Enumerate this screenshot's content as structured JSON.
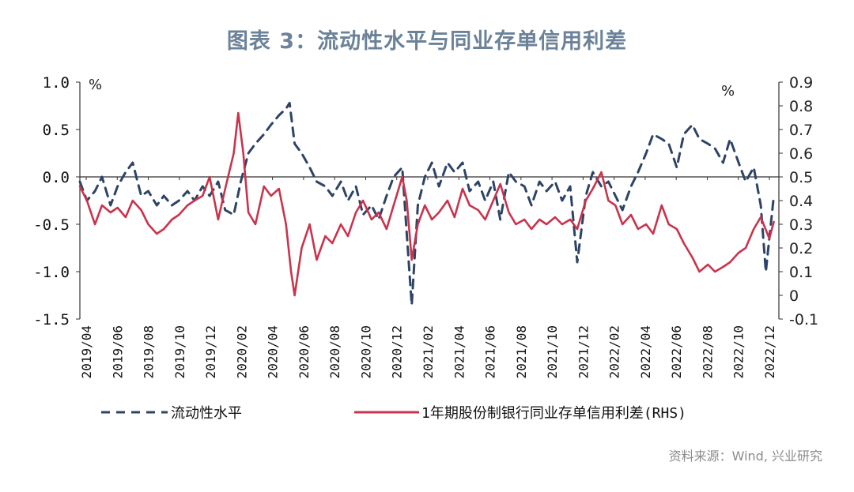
{
  "title": "图表 3：流动性水平与同业存单信用利差",
  "source": "资料来源：Wind, 兴业研究",
  "chart_data": {
    "type": "line",
    "x_tick_labels": [
      "2019/04",
      "2019/06",
      "2019/08",
      "2019/10",
      "2019/12",
      "2020/02",
      "2020/04",
      "2020/06",
      "2020/08",
      "2020/10",
      "2020/12",
      "2021/02",
      "2021/04",
      "2021/06",
      "2021/08",
      "2021/10",
      "2021/12",
      "2022/02",
      "2022/04",
      "2022/06",
      "2022/08",
      "2022/10",
      "2022/12"
    ],
    "left_axis": {
      "unit": "%",
      "ylim": [
        -1.5,
        1.0
      ],
      "ticks": [
        "1.0",
        "0.5",
        "0.0",
        "-0.5",
        "-1.0",
        "-1.5"
      ]
    },
    "right_axis": {
      "unit": "%",
      "ylim": [
        -0.1,
        0.9
      ],
      "ticks": [
        "0.9",
        "0.8",
        "0.7",
        "0.6",
        "0.5",
        "0.4",
        "0.3",
        "0.2",
        "0.1",
        "0",
        "-0.1"
      ]
    },
    "legend_placement": "bottom",
    "series": [
      {
        "name": "流动性水平",
        "axis": "left",
        "style": "dashed",
        "color": "#2e4466",
        "points": [
          [
            "2019-04-01",
            -0.05
          ],
          [
            "2019-04-15",
            -0.25
          ],
          [
            "2019-05-01",
            -0.15
          ],
          [
            "2019-05-15",
            0.0
          ],
          [
            "2019-06-01",
            -0.3
          ],
          [
            "2019-06-15",
            -0.1
          ],
          [
            "2019-07-01",
            0.05
          ],
          [
            "2019-07-15",
            0.15
          ],
          [
            "2019-08-01",
            -0.2
          ],
          [
            "2019-08-15",
            -0.15
          ],
          [
            "2019-09-01",
            -0.3
          ],
          [
            "2019-09-15",
            -0.2
          ],
          [
            "2019-10-01",
            -0.3
          ],
          [
            "2019-10-15",
            -0.25
          ],
          [
            "2019-11-01",
            -0.15
          ],
          [
            "2019-11-15",
            -0.25
          ],
          [
            "2019-12-01",
            -0.1
          ],
          [
            "2019-12-15",
            -0.2
          ],
          [
            "2020-01-01",
            -0.05
          ],
          [
            "2020-01-15",
            -0.35
          ],
          [
            "2020-02-01",
            -0.4
          ],
          [
            "2020-02-15",
            -0.05
          ],
          [
            "2020-03-01",
            0.25
          ],
          [
            "2020-03-15",
            0.35
          ],
          [
            "2020-04-01",
            0.45
          ],
          [
            "2020-04-15",
            0.55
          ],
          [
            "2020-05-01",
            0.65
          ],
          [
            "2020-05-15",
            0.72
          ],
          [
            "2020-05-22",
            0.78
          ],
          [
            "2020-06-01",
            0.35
          ],
          [
            "2020-06-15",
            0.25
          ],
          [
            "2020-07-01",
            0.1
          ],
          [
            "2020-07-15",
            -0.05
          ],
          [
            "2020-08-01",
            -0.1
          ],
          [
            "2020-08-15",
            -0.2
          ],
          [
            "2020-09-01",
            -0.05
          ],
          [
            "2020-09-15",
            -0.25
          ],
          [
            "2020-10-01",
            -0.1
          ],
          [
            "2020-10-15",
            -0.4
          ],
          [
            "2020-11-01",
            -0.3
          ],
          [
            "2020-11-15",
            -0.45
          ],
          [
            "2020-12-01",
            -0.2
          ],
          [
            "2020-12-15",
            0.0
          ],
          [
            "2021-01-01",
            0.1
          ],
          [
            "2021-01-10",
            -0.6
          ],
          [
            "2021-01-20",
            -1.35
          ],
          [
            "2021-02-01",
            -0.3
          ],
          [
            "2021-02-15",
            0.0
          ],
          [
            "2021-03-01",
            0.15
          ],
          [
            "2021-03-15",
            -0.1
          ],
          [
            "2021-04-01",
            0.15
          ],
          [
            "2021-04-15",
            0.05
          ],
          [
            "2021-05-01",
            0.15
          ],
          [
            "2021-05-15",
            -0.15
          ],
          [
            "2021-06-01",
            -0.05
          ],
          [
            "2021-06-15",
            -0.25
          ],
          [
            "2021-07-01",
            -0.05
          ],
          [
            "2021-07-15",
            -0.45
          ],
          [
            "2021-08-01",
            0.05
          ],
          [
            "2021-08-15",
            -0.05
          ],
          [
            "2021-09-01",
            -0.1
          ],
          [
            "2021-09-15",
            -0.3
          ],
          [
            "2021-10-01",
            -0.05
          ],
          [
            "2021-10-15",
            -0.15
          ],
          [
            "2021-11-01",
            -0.05
          ],
          [
            "2021-11-15",
            -0.25
          ],
          [
            "2021-12-01",
            -0.1
          ],
          [
            "2021-12-15",
            -0.9
          ],
          [
            "2022-01-01",
            -0.2
          ],
          [
            "2022-01-15",
            0.05
          ],
          [
            "2022-02-01",
            -0.1
          ],
          [
            "2022-02-15",
            -0.05
          ],
          [
            "2022-03-01",
            -0.2
          ],
          [
            "2022-03-15",
            -0.35
          ],
          [
            "2022-04-01",
            -0.1
          ],
          [
            "2022-04-15",
            0.05
          ],
          [
            "2022-05-01",
            0.25
          ],
          [
            "2022-05-15",
            0.45
          ],
          [
            "2022-06-01",
            0.4
          ],
          [
            "2022-06-15",
            0.35
          ],
          [
            "2022-07-01",
            0.1
          ],
          [
            "2022-07-15",
            0.45
          ],
          [
            "2022-08-01",
            0.55
          ],
          [
            "2022-08-15",
            0.4
          ],
          [
            "2022-09-01",
            0.35
          ],
          [
            "2022-09-15",
            0.3
          ],
          [
            "2022-10-01",
            0.15
          ],
          [
            "2022-10-15",
            0.4
          ],
          [
            "2022-11-01",
            0.15
          ],
          [
            "2022-11-15",
            -0.05
          ],
          [
            "2022-12-01",
            0.1
          ],
          [
            "2022-12-15",
            -0.3
          ],
          [
            "2022-12-25",
            -1.0
          ],
          [
            "2023-01-10",
            -0.2
          ]
        ]
      },
      {
        "name": "1年期股份制银行同业存单信用利差(RHS)",
        "axis": "right",
        "style": "solid",
        "color": "#c8344d",
        "points": [
          [
            "2019-04-01",
            0.46
          ],
          [
            "2019-04-15",
            0.4
          ],
          [
            "2019-05-01",
            0.3
          ],
          [
            "2019-05-15",
            0.38
          ],
          [
            "2019-06-01",
            0.35
          ],
          [
            "2019-06-15",
            0.37
          ],
          [
            "2019-07-01",
            0.33
          ],
          [
            "2019-07-15",
            0.4
          ],
          [
            "2019-08-01",
            0.36
          ],
          [
            "2019-08-15",
            0.3
          ],
          [
            "2019-09-01",
            0.26
          ],
          [
            "2019-09-15",
            0.28
          ],
          [
            "2019-10-01",
            0.32
          ],
          [
            "2019-10-15",
            0.34
          ],
          [
            "2019-11-01",
            0.38
          ],
          [
            "2019-11-15",
            0.4
          ],
          [
            "2019-12-01",
            0.42
          ],
          [
            "2019-12-15",
            0.5
          ],
          [
            "2020-01-01",
            0.32
          ],
          [
            "2020-01-15",
            0.45
          ],
          [
            "2020-02-01",
            0.6
          ],
          [
            "2020-02-10",
            0.77
          ],
          [
            "2020-02-20",
            0.6
          ],
          [
            "2020-03-01",
            0.35
          ],
          [
            "2020-03-15",
            0.3
          ],
          [
            "2020-04-01",
            0.46
          ],
          [
            "2020-04-15",
            0.42
          ],
          [
            "2020-05-01",
            0.45
          ],
          [
            "2020-05-15",
            0.3
          ],
          [
            "2020-05-25",
            0.1
          ],
          [
            "2020-06-01",
            0.0
          ],
          [
            "2020-06-15",
            0.2
          ],
          [
            "2020-07-01",
            0.3
          ],
          [
            "2020-07-15",
            0.15
          ],
          [
            "2020-08-01",
            0.25
          ],
          [
            "2020-08-15",
            0.22
          ],
          [
            "2020-09-01",
            0.3
          ],
          [
            "2020-09-15",
            0.25
          ],
          [
            "2020-10-01",
            0.35
          ],
          [
            "2020-10-15",
            0.4
          ],
          [
            "2020-11-01",
            0.32
          ],
          [
            "2020-11-15",
            0.35
          ],
          [
            "2020-12-01",
            0.28
          ],
          [
            "2020-12-15",
            0.38
          ],
          [
            "2021-01-01",
            0.5
          ],
          [
            "2021-01-10",
            0.4
          ],
          [
            "2021-01-20",
            0.15
          ],
          [
            "2021-02-01",
            0.3
          ],
          [
            "2021-02-15",
            0.38
          ],
          [
            "2021-03-01",
            0.32
          ],
          [
            "2021-03-15",
            0.35
          ],
          [
            "2021-04-01",
            0.4
          ],
          [
            "2021-04-15",
            0.33
          ],
          [
            "2021-05-01",
            0.45
          ],
          [
            "2021-05-15",
            0.38
          ],
          [
            "2021-06-01",
            0.36
          ],
          [
            "2021-06-15",
            0.32
          ],
          [
            "2021-07-01",
            0.4
          ],
          [
            "2021-07-15",
            0.47
          ],
          [
            "2021-08-01",
            0.35
          ],
          [
            "2021-08-15",
            0.3
          ],
          [
            "2021-09-01",
            0.32
          ],
          [
            "2021-09-15",
            0.28
          ],
          [
            "2021-10-01",
            0.32
          ],
          [
            "2021-10-15",
            0.3
          ],
          [
            "2021-11-01",
            0.33
          ],
          [
            "2021-11-15",
            0.3
          ],
          [
            "2021-12-01",
            0.32
          ],
          [
            "2021-12-15",
            0.28
          ],
          [
            "2022-01-01",
            0.4
          ],
          [
            "2022-01-15",
            0.45
          ],
          [
            "2022-02-01",
            0.52
          ],
          [
            "2022-02-15",
            0.4
          ],
          [
            "2022-03-01",
            0.38
          ],
          [
            "2022-03-15",
            0.3
          ],
          [
            "2022-04-01",
            0.34
          ],
          [
            "2022-04-15",
            0.28
          ],
          [
            "2022-05-01",
            0.3
          ],
          [
            "2022-05-15",
            0.26
          ],
          [
            "2022-06-01",
            0.38
          ],
          [
            "2022-06-15",
            0.3
          ],
          [
            "2022-07-01",
            0.28
          ],
          [
            "2022-07-15",
            0.22
          ],
          [
            "2022-08-01",
            0.16
          ],
          [
            "2022-08-15",
            0.1
          ],
          [
            "2022-09-01",
            0.13
          ],
          [
            "2022-09-15",
            0.1
          ],
          [
            "2022-10-01",
            0.12
          ],
          [
            "2022-10-15",
            0.14
          ],
          [
            "2022-11-01",
            0.18
          ],
          [
            "2022-11-15",
            0.2
          ],
          [
            "2022-12-01",
            0.28
          ],
          [
            "2022-12-15",
            0.33
          ],
          [
            "2023-01-01",
            0.24
          ],
          [
            "2023-01-10",
            0.31
          ]
        ]
      }
    ]
  }
}
